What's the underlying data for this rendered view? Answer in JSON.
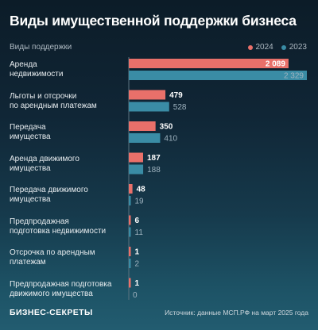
{
  "title": "Виды имущественной поддержки бизнеса",
  "column_header": "Виды поддержки",
  "footer": {
    "logo": "БИЗНЕС-СЕКРЕТЫ",
    "source": "Источник: данные МСП.РФ на март 2025 года"
  },
  "colors": {
    "2024": "#e9706a",
    "2023": "#3a8ca5"
  },
  "chart_data": {
    "type": "bar",
    "orientation": "horizontal",
    "title": "Виды имущественной поддержки бизнеса",
    "legend_position": "top-right",
    "categories": [
      "Аренда\nнедвижимости",
      "Льготы и отсрочки\nпо арендным платежам",
      "Передача\nимущества",
      "Аренда движимого\nимущества",
      "Передача движимого\nимущества",
      "Предпродажная\nподготовка недвижимости",
      "Отсрочка по арендным\nплатежам",
      "Предпродажная подготовка\nдвижимого имущества"
    ],
    "value_labels": {
      "2024": [
        "2 089",
        "479",
        "350",
        "187",
        "48",
        "6",
        "1",
        "1"
      ],
      "2023": [
        "2 329",
        "528",
        "410",
        "188",
        "19",
        "11",
        "2",
        "0"
      ]
    },
    "series": [
      {
        "name": "2024",
        "values": [
          2089,
          479,
          350,
          187,
          48,
          6,
          1,
          1
        ]
      },
      {
        "name": "2023",
        "values": [
          2329,
          528,
          410,
          188,
          19,
          11,
          2,
          0
        ]
      }
    ]
  }
}
